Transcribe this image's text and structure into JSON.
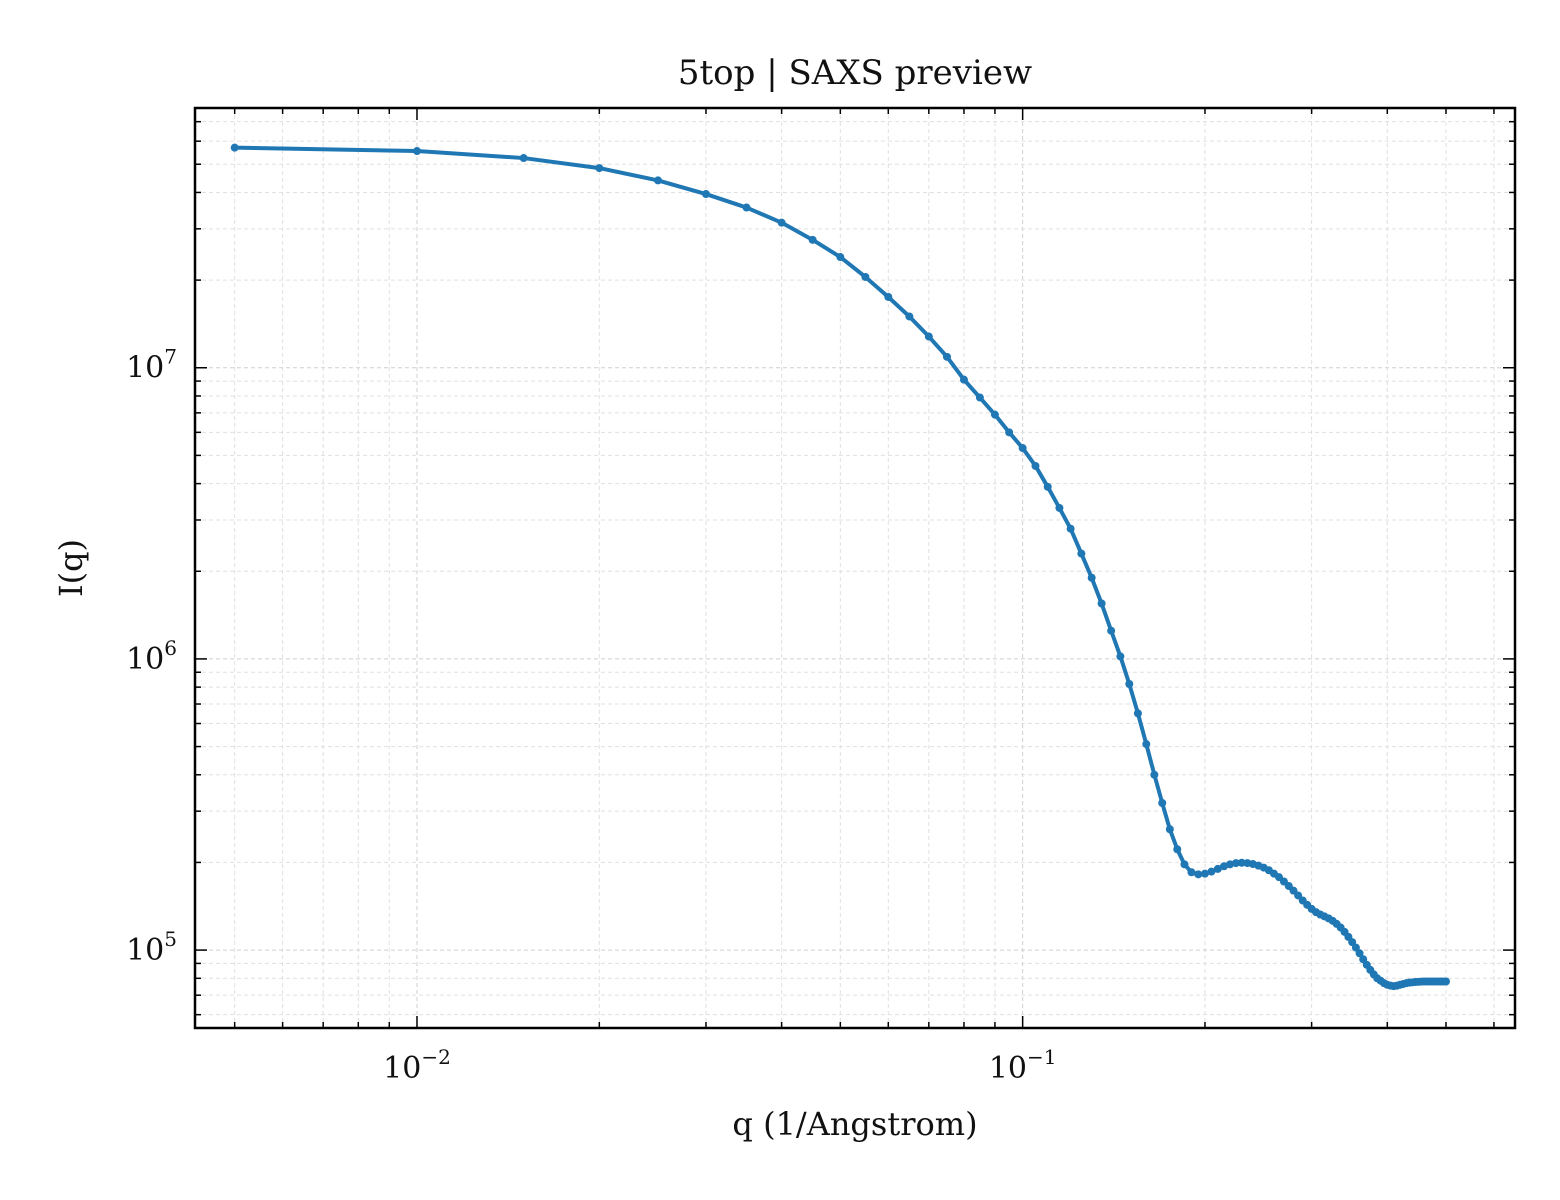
{
  "chart_data": {
    "type": "line",
    "title": "5top | SAXS preview",
    "xlabel": "q (1/Angstrom)",
    "ylabel": "I(q)",
    "xscale": "log",
    "yscale": "log",
    "xlim": [
      0.0043,
      0.65
    ],
    "ylim": [
      54000,
      78000000
    ],
    "grid": "on",
    "legend": "none",
    "series_color": "#1f77b4",
    "x_ticks": [
      {
        "value": 0.01,
        "base": "10",
        "exp": "−2"
      },
      {
        "value": 0.1,
        "base": "10",
        "exp": "−1"
      }
    ],
    "y_ticks": [
      {
        "value": 100000,
        "base": "10",
        "exp": "5"
      },
      {
        "value": 1000000,
        "base": "10",
        "exp": "6"
      },
      {
        "value": 10000000,
        "base": "10",
        "exp": "7"
      }
    ],
    "series": [
      {
        "x": [
          0.005,
          0.01,
          0.015,
          0.02,
          0.025,
          0.03,
          0.035,
          0.04,
          0.045,
          0.05,
          0.055,
          0.06,
          0.065,
          0.07,
          0.075,
          0.08,
          0.085,
          0.09,
          0.095,
          0.1,
          0.105,
          0.11,
          0.115,
          0.12,
          0.125,
          0.13,
          0.135,
          0.14,
          0.145,
          0.15,
          0.155,
          0.16,
          0.165,
          0.17,
          0.175,
          0.18,
          0.185,
          0.19,
          0.195,
          0.2,
          0.205,
          0.21,
          0.215,
          0.22,
          0.225,
          0.23,
          0.235,
          0.24,
          0.245,
          0.25,
          0.255,
          0.26,
          0.265,
          0.27,
          0.275,
          0.28,
          0.285,
          0.29,
          0.295,
          0.3,
          0.305,
          0.31,
          0.315,
          0.32,
          0.325,
          0.33,
          0.335,
          0.34,
          0.345,
          0.35,
          0.355,
          0.36,
          0.365,
          0.37,
          0.375,
          0.38,
          0.385,
          0.39,
          0.395,
          0.4,
          0.405,
          0.41,
          0.415,
          0.42,
          0.425,
          0.43,
          0.435,
          0.44,
          0.445,
          0.45,
          0.455,
          0.46,
          0.465,
          0.47,
          0.475,
          0.48,
          0.485,
          0.49,
          0.495,
          0.5
        ],
        "y": [
          57000000,
          55500000,
          52500000,
          48500000,
          44000000,
          39500000,
          35500000,
          31500000,
          27500000,
          24000000,
          20500000,
          17500000,
          15000000,
          12800000,
          10900000,
          9100000,
          7900000,
          6900000,
          6000000,
          5300000,
          4600000,
          3900000,
          3300000,
          2800000,
          2300000,
          1900000,
          1550000,
          1250000,
          1020000,
          820000,
          650000,
          510000,
          400000,
          320000,
          260000,
          222000,
          197000,
          185000,
          182000,
          183000,
          186000,
          190000,
          194000,
          197000,
          199000,
          199500,
          199000,
          197500,
          195000,
          192000,
          188000,
          183000,
          178000,
          172000,
          166000,
          160000,
          154000,
          148000,
          143000,
          138500,
          135000,
          132500,
          130500,
          128500,
          126000,
          123000,
          119500,
          115500,
          111000,
          106500,
          102000,
          97500,
          93000,
          89000,
          85500,
          82500,
          80000,
          78500,
          77000,
          76000,
          75500,
          75200,
          75500,
          76000,
          76500,
          77000,
          77300,
          77500,
          77700,
          77800,
          77900,
          78000,
          78000,
          78000,
          78000,
          78000,
          78000,
          78000,
          78000,
          78000
        ]
      }
    ]
  }
}
